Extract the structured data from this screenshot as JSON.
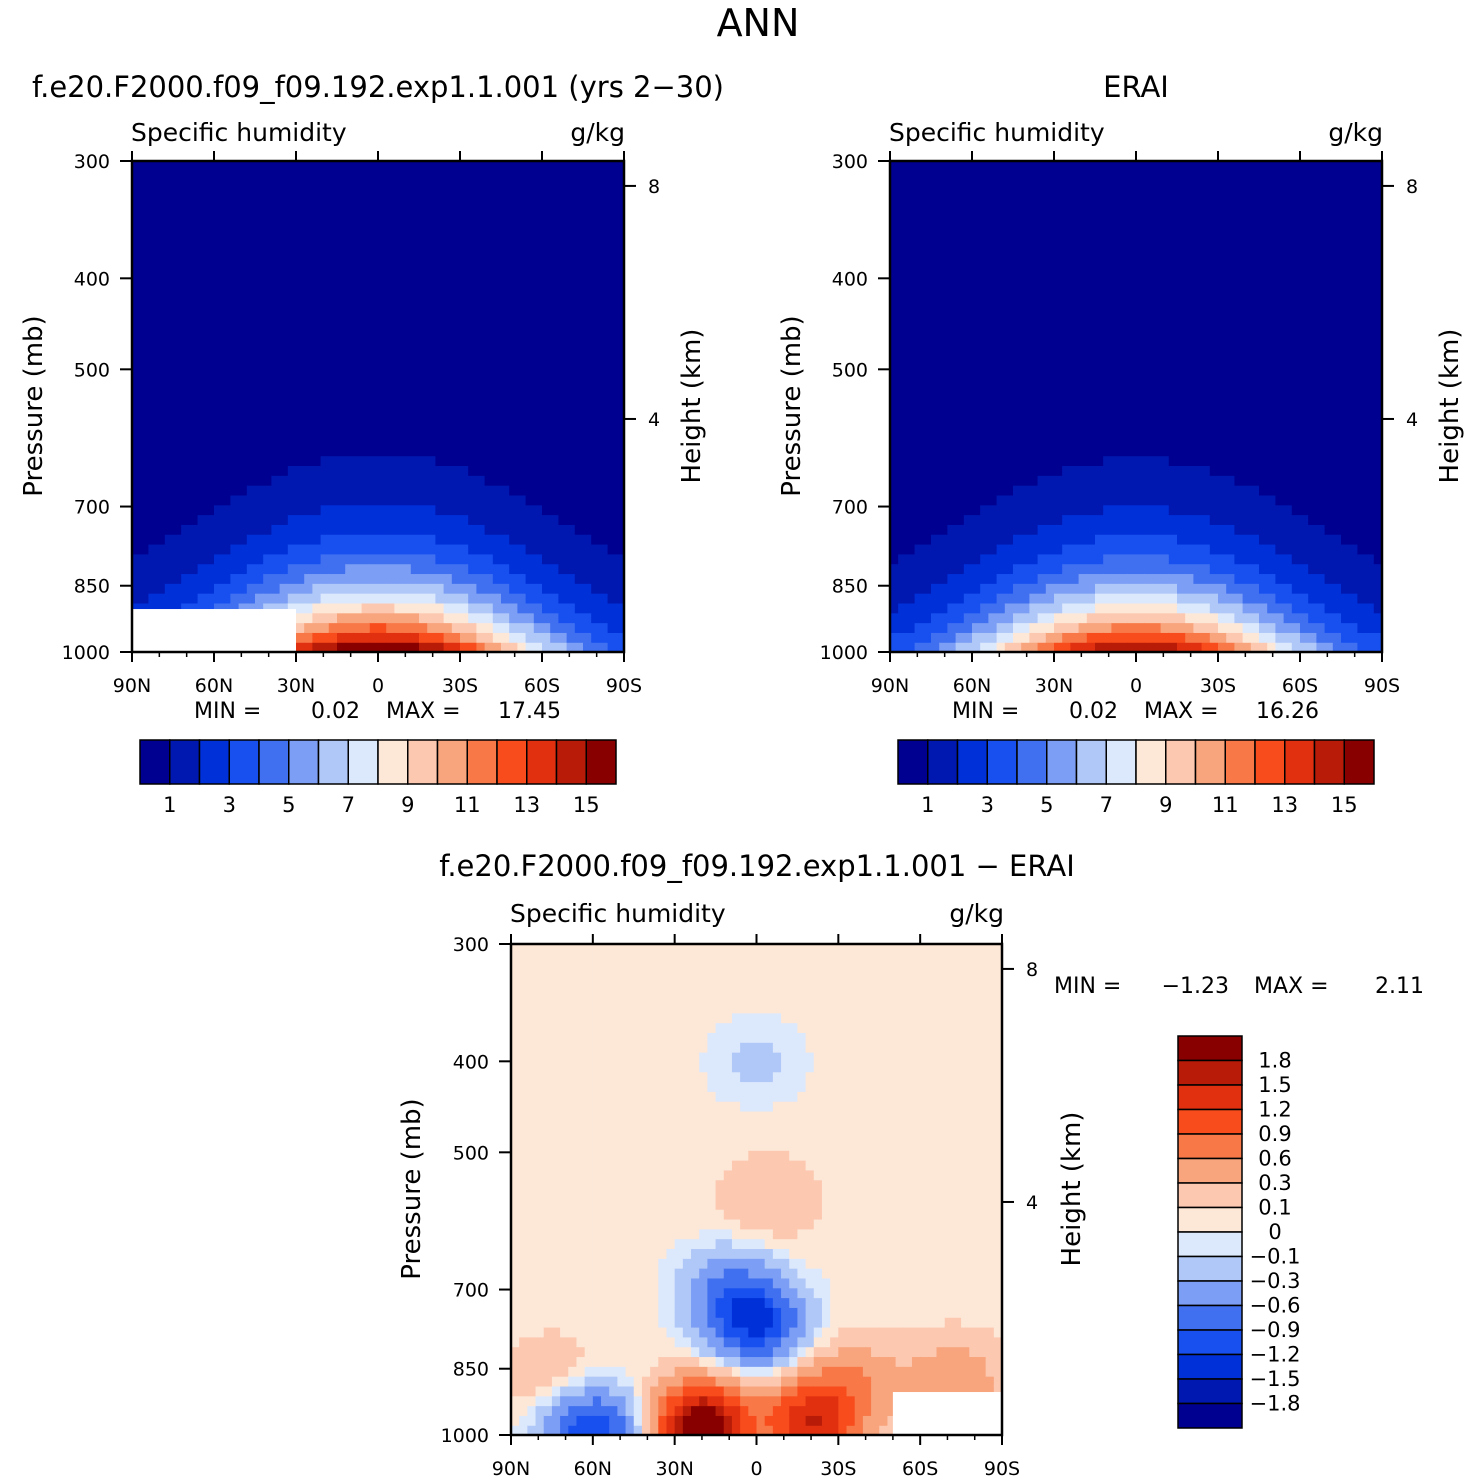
{
  "figure": {
    "title": "ANN"
  },
  "colors": {
    "full": [
      "#000090",
      "#0018b0",
      "#0030d8",
      "#1850f0",
      "#4070f0",
      "#7c9ef4",
      "#b0c8f8",
      "#dce8fc",
      "#fde8d8",
      "#fcc8b0",
      "#f8a47c",
      "#f87848",
      "#f84c1c",
      "#e03010",
      "#b81c08",
      "#880000"
    ],
    "diff": [
      "#000090",
      "#0018b0",
      "#0030d8",
      "#1850f0",
      "#4070f0",
      "#7c9ef4",
      "#b0c8f8",
      "#dce8fc",
      "#fde8d8",
      "#fcc8b0",
      "#f8a47c",
      "#f87848",
      "#f84c1c",
      "#e03010",
      "#b81c08",
      "#880000"
    ]
  },
  "chart_data": [
    {
      "type": "heatmap",
      "title": "f.e20.F2000.f09_f09.192.exp1.1.001 (yrs 2−30)",
      "left_subtitle": "Specific humidity",
      "right_subtitle": "g/kg",
      "ylabel": "Pressure (mb)",
      "y2label": "Height (km)",
      "x_ticks": [
        "90N",
        "60N",
        "30N",
        "0",
        "30S",
        "60S",
        "90S"
      ],
      "xlim": [
        90,
        -90
      ],
      "y_ticks": [
        "300",
        "400",
        "500",
        "700",
        "850",
        "1000"
      ],
      "ylim": [
        1000,
        300
      ],
      "y_scale": "log",
      "y2_ticks": [
        "8",
        "4"
      ],
      "stats": {
        "min_label": "MIN =",
        "min": "0.02",
        "max_label": "MAX =",
        "max": "17.45"
      },
      "colorbar": {
        "labels": [
          "1",
          "3",
          "5",
          "7",
          "9",
          "11",
          "13",
          "15"
        ]
      },
      "peak_x": 0,
      "peak_value": 17.45,
      "missing_region": {
        "x": [
          30,
          90
        ],
        "p": [
          900,
          1000
        ]
      }
    },
    {
      "type": "heatmap",
      "title": "ERAI",
      "left_subtitle": "Specific humidity",
      "right_subtitle": "g/kg",
      "ylabel": "Pressure (mb)",
      "y2label": "Height (km)",
      "x_ticks": [
        "90N",
        "60N",
        "30N",
        "0",
        "30S",
        "60S",
        "90S"
      ],
      "xlim": [
        90,
        -90
      ],
      "y_ticks": [
        "300",
        "400",
        "500",
        "700",
        "850",
        "1000"
      ],
      "ylim": [
        1000,
        300
      ],
      "y_scale": "log",
      "y2_ticks": [
        "8",
        "4"
      ],
      "stats": {
        "min_label": "MIN =",
        "min": "0.02",
        "max_label": "MAX =",
        "max": "16.26"
      },
      "colorbar": {
        "labels": [
          "1",
          "3",
          "5",
          "7",
          "9",
          "11",
          "13",
          "15"
        ]
      },
      "peak_x": 0,
      "peak_value": 16.26
    },
    {
      "type": "heatmap",
      "title": "f.e20.F2000.f09_f09.192.exp1.1.001 − ERAI",
      "left_subtitle": "Specific humidity",
      "right_subtitle": "g/kg",
      "ylabel": "Pressure (mb)",
      "y2label": "Height (km)",
      "x_ticks": [
        "90N",
        "60N",
        "30N",
        "0",
        "30S",
        "60S",
        "90S"
      ],
      "xlim": [
        90,
        -90
      ],
      "y_ticks": [
        "300",
        "400",
        "500",
        "700",
        "850",
        "1000"
      ],
      "ylim": [
        1000,
        300
      ],
      "y_scale": "log",
      "y2_ticks": [
        "8",
        "4"
      ],
      "stats": {
        "min_label": "MIN =",
        "min": "−1.23",
        "max_label": "MAX =",
        "max": "2.11"
      },
      "colorbar": {
        "labels": [
          "1.8",
          "1.5",
          "1.2",
          "0.9",
          "0.6",
          "0.3",
          "0.1",
          "0",
          "−0.1",
          "−0.3",
          "−0.6",
          "−0.9",
          "−1.2",
          "−1.5",
          "−1.8"
        ]
      },
      "features": [
        {
          "x": 20,
          "p": 975,
          "value": 2.1
        },
        {
          "x": -20,
          "p": 970,
          "value": 1.4
        },
        {
          "x": -35,
          "p": 880,
          "value": 0.5
        },
        {
          "x": -72,
          "p": 880,
          "value": 0.5
        },
        {
          "x": 0,
          "p": 760,
          "value": -1.2
        },
        {
          "x": 10,
          "p": 700,
          "value": -0.6
        },
        {
          "x": -5,
          "p": 560,
          "value": 0.2
        },
        {
          "x": 0,
          "p": 400,
          "value": -0.2
        },
        {
          "x": 60,
          "p": 985,
          "value": -1.2
        },
        {
          "x": 75,
          "p": 870,
          "value": 0.2
        }
      ],
      "missing_region": {
        "x": [
          -50,
          -90
        ],
        "p": [
          900,
          1000
        ]
      }
    }
  ]
}
